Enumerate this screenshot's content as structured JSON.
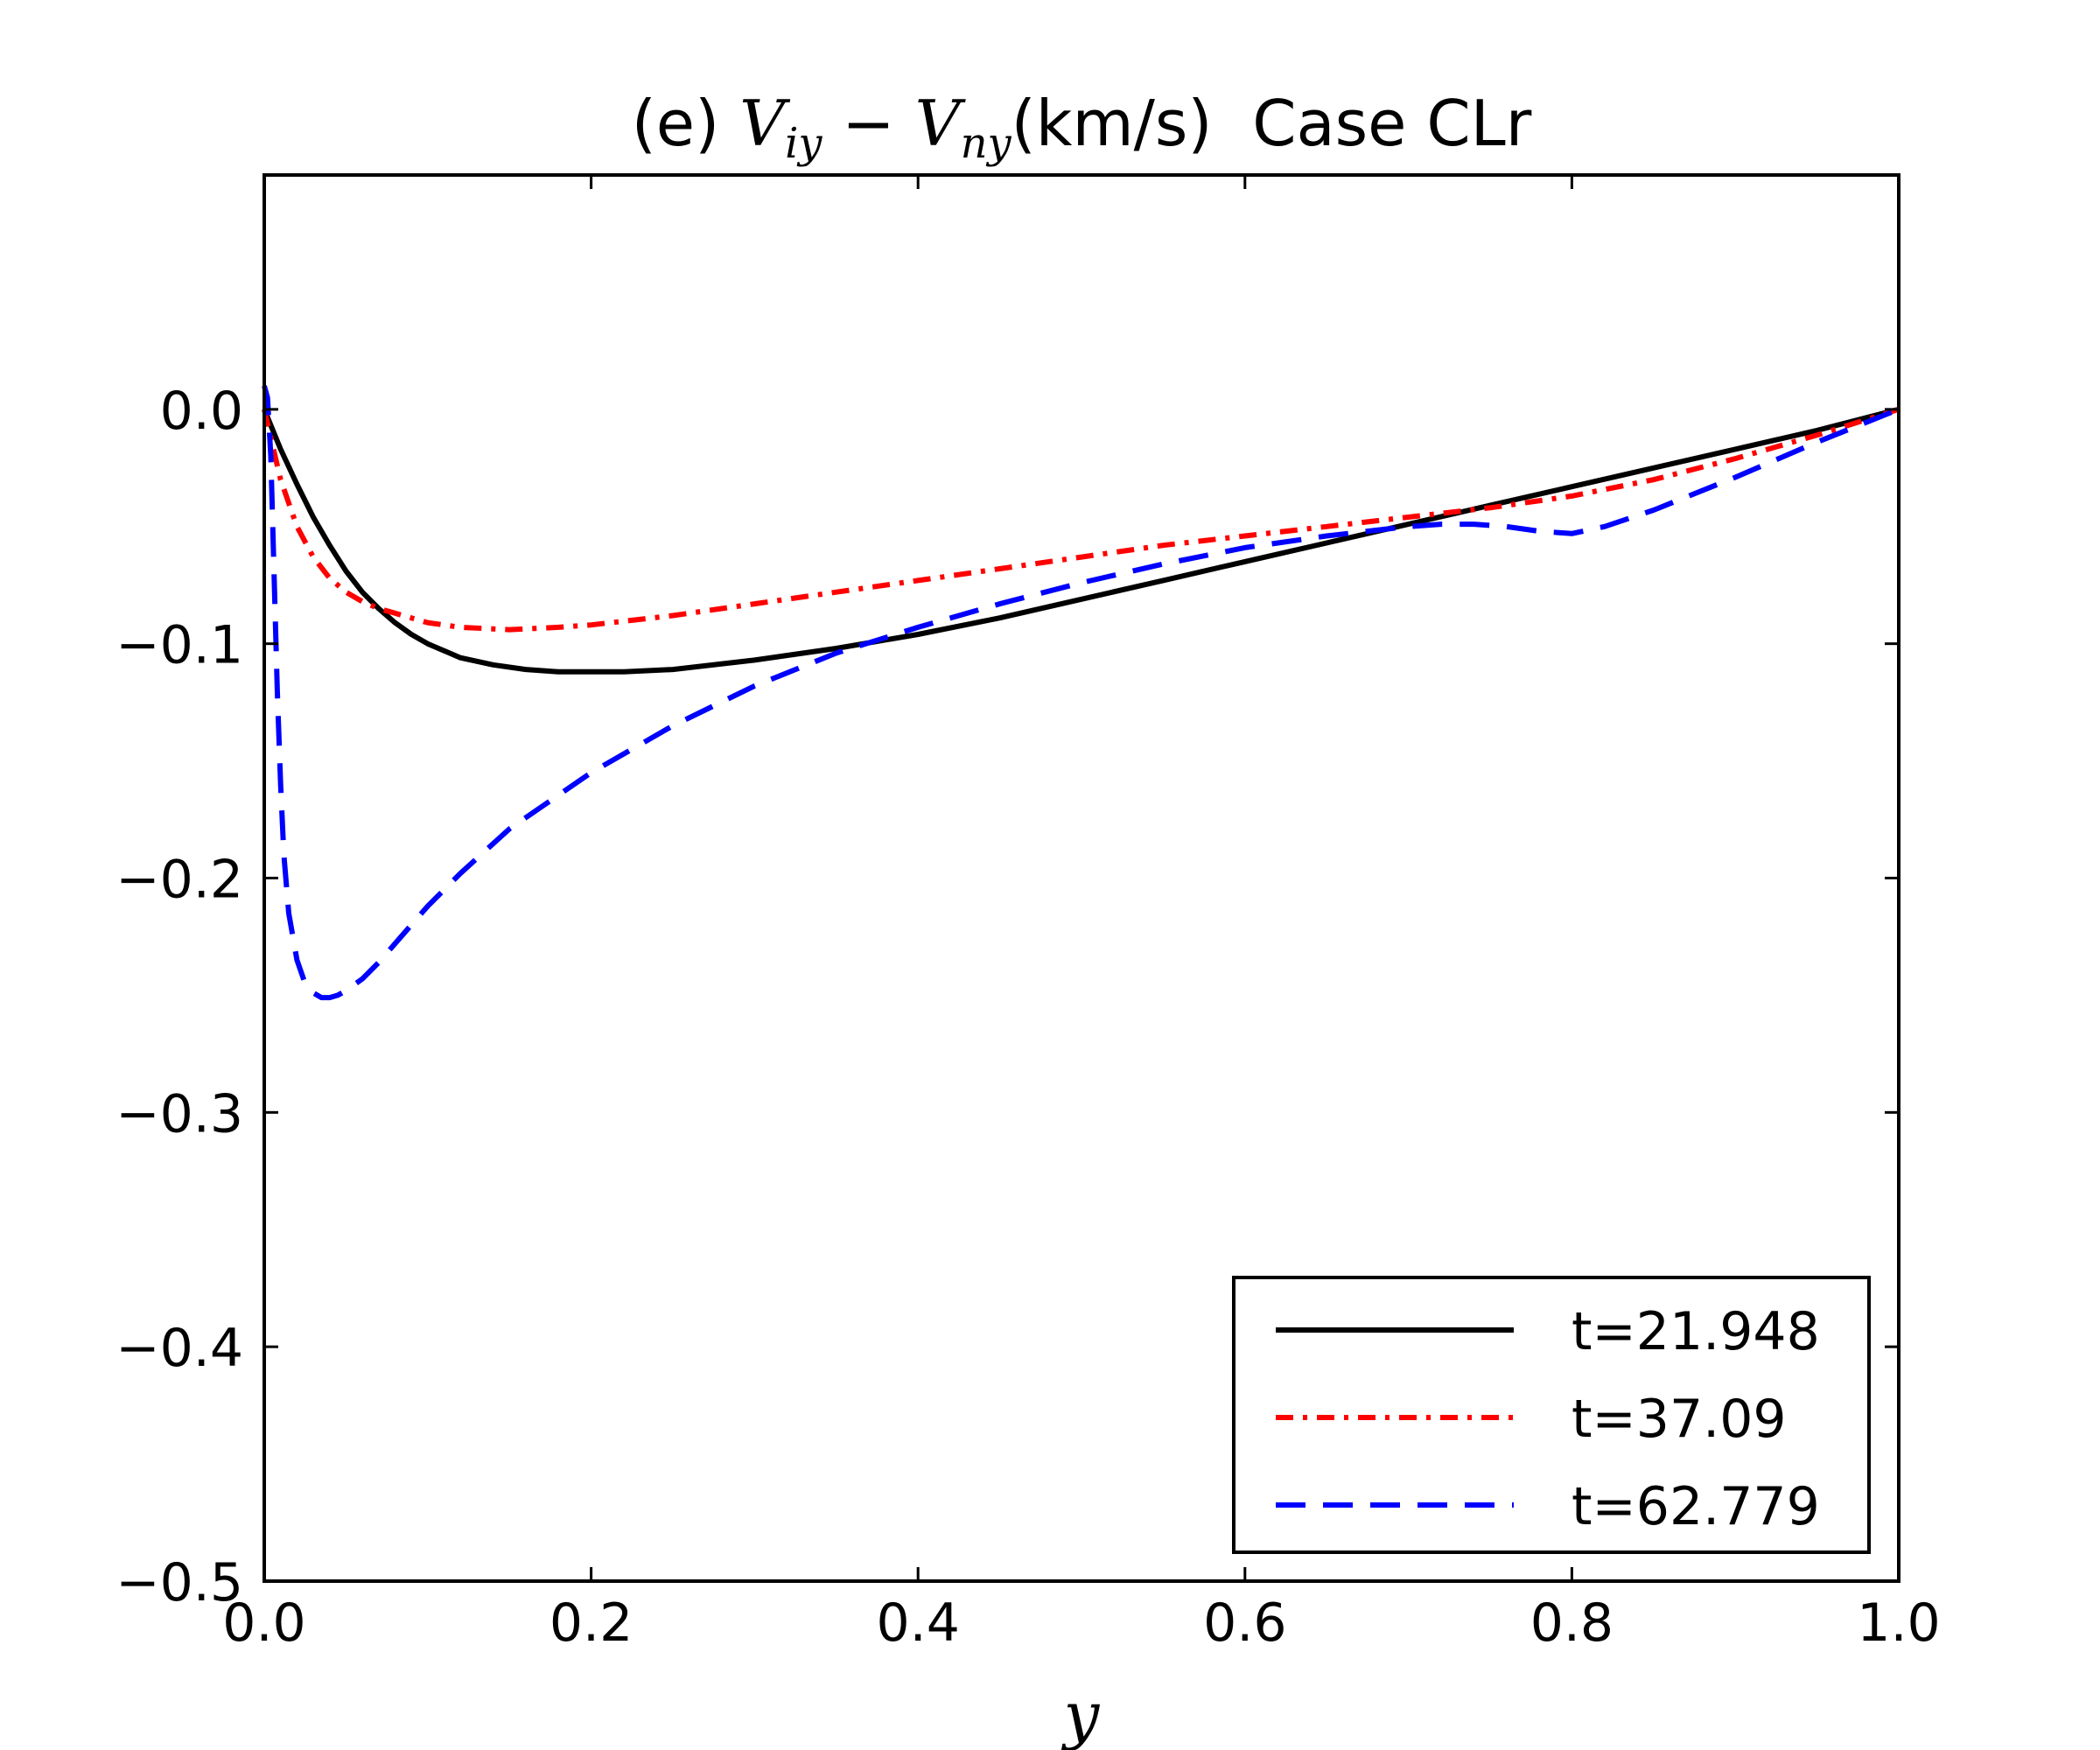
{
  "chart_data": {
    "type": "line",
    "title": {
      "prefix": "(e) ",
      "math_a": "V",
      "math_a_sub": "iy",
      "math_op": " − ",
      "math_b": "V",
      "math_b_sub": "ny",
      "units": "(km/s)",
      "suffix": "  Case CLr"
    },
    "xlabel": "y",
    "ylabel": "",
    "xlim": [
      0.0,
      1.0
    ],
    "ylim": [
      -0.5,
      0.1
    ],
    "xticks": [
      0.0,
      0.2,
      0.4,
      0.6,
      0.8,
      1.0
    ],
    "xtick_labels": [
      "0.0",
      "0.2",
      "0.4",
      "0.6",
      "0.8",
      "1.0"
    ],
    "yticks": [
      0.0,
      -0.1,
      -0.2,
      -0.3,
      -0.4,
      -0.5
    ],
    "ytick_labels": [
      "0.0",
      "−0.1",
      "−0.2",
      "−0.3",
      "−0.4",
      "−0.5"
    ],
    "grid": false,
    "legend_position": "lower-right",
    "series": [
      {
        "name": "t=21.948",
        "color": "#000000",
        "style": "solid",
        "x": [
          0.0,
          0.01,
          0.02,
          0.03,
          0.04,
          0.05,
          0.06,
          0.07,
          0.08,
          0.09,
          0.1,
          0.12,
          0.14,
          0.16,
          0.18,
          0.2,
          0.22,
          0.25,
          0.3,
          0.35,
          0.4,
          0.45,
          0.5,
          0.55,
          0.6,
          0.65,
          0.7,
          0.75,
          0.8,
          0.85,
          0.9,
          0.95,
          1.0
        ],
        "y": [
          0.0,
          -0.017,
          -0.032,
          -0.046,
          -0.058,
          -0.069,
          -0.078,
          -0.085,
          -0.091,
          -0.096,
          -0.1,
          -0.106,
          -0.109,
          -0.111,
          -0.112,
          -0.112,
          -0.112,
          -0.111,
          -0.107,
          -0.102,
          -0.096,
          -0.089,
          -0.081,
          -0.073,
          -0.065,
          -0.057,
          -0.049,
          -0.041,
          -0.033,
          -0.025,
          -0.017,
          -0.009,
          0.0
        ]
      },
      {
        "name": "t=37.09",
        "color": "#ff0000",
        "style": "dashdot",
        "x": [
          0.0,
          0.005,
          0.01,
          0.02,
          0.03,
          0.04,
          0.05,
          0.06,
          0.07,
          0.08,
          0.09,
          0.1,
          0.12,
          0.15,
          0.18,
          0.2,
          0.25,
          0.3,
          0.35,
          0.4,
          0.45,
          0.5,
          0.55,
          0.6,
          0.65,
          0.7,
          0.75,
          0.8,
          0.85,
          0.9,
          0.95,
          1.0
        ],
        "y": [
          0.0,
          -0.015,
          -0.03,
          -0.05,
          -0.063,
          -0.072,
          -0.078,
          -0.082,
          -0.085,
          -0.087,
          -0.089,
          -0.091,
          -0.093,
          -0.094,
          -0.093,
          -0.092,
          -0.088,
          -0.083,
          -0.078,
          -0.073,
          -0.068,
          -0.063,
          -0.058,
          -0.054,
          -0.05,
          -0.046,
          -0.042,
          -0.037,
          -0.03,
          -0.021,
          -0.011,
          0.0
        ]
      },
      {
        "name": "t=62.779",
        "color": "#0000ff",
        "style": "dashed",
        "x": [
          0.0,
          0.002,
          0.004,
          0.006,
          0.008,
          0.01,
          0.012,
          0.015,
          0.02,
          0.025,
          0.03,
          0.035,
          0.04,
          0.045,
          0.05,
          0.06,
          0.07,
          0.08,
          0.1,
          0.12,
          0.15,
          0.2,
          0.25,
          0.3,
          0.35,
          0.4,
          0.45,
          0.5,
          0.55,
          0.6,
          0.65,
          0.7,
          0.72,
          0.74,
          0.76,
          0.78,
          0.8,
          0.82,
          0.85,
          0.9,
          0.95,
          1.0
        ],
        "y": [
          0.01,
          0.005,
          -0.02,
          -0.07,
          -0.12,
          -0.16,
          -0.19,
          -0.215,
          -0.235,
          -0.245,
          -0.249,
          -0.251,
          -0.251,
          -0.25,
          -0.248,
          -0.243,
          -0.236,
          -0.228,
          -0.212,
          -0.198,
          -0.179,
          -0.155,
          -0.135,
          -0.118,
          -0.104,
          -0.093,
          -0.083,
          -0.074,
          -0.066,
          -0.059,
          -0.054,
          -0.05,
          -0.049,
          -0.049,
          -0.05,
          -0.052,
          -0.053,
          -0.05,
          -0.043,
          -0.029,
          -0.014,
          0.0
        ]
      }
    ]
  }
}
